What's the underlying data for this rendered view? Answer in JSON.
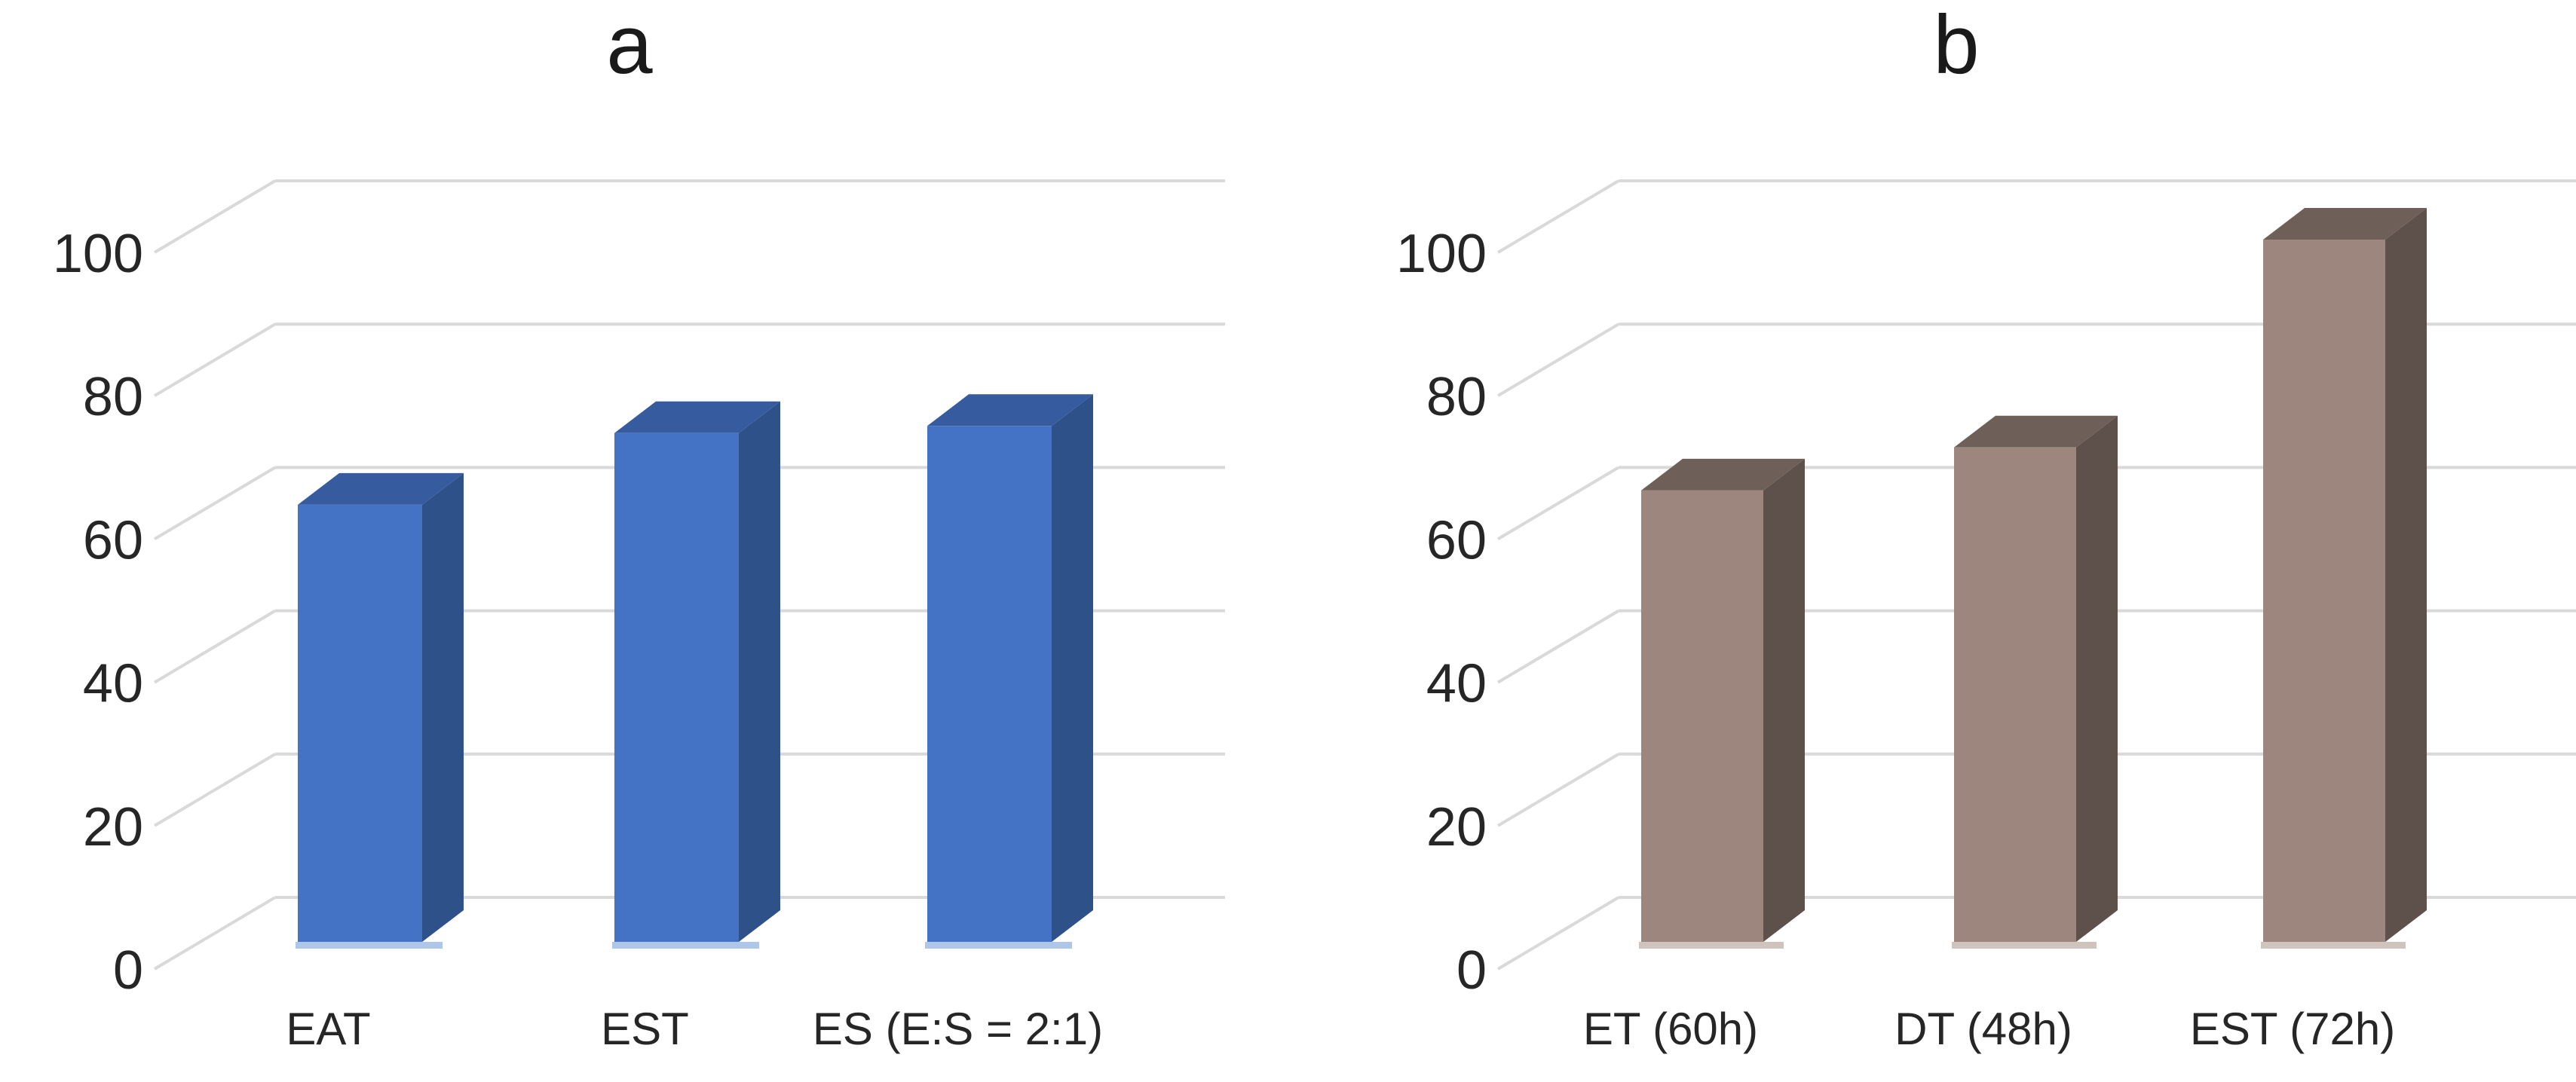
{
  "page": {
    "background": "#FFFFFF"
  },
  "axis_style": {
    "gridline_color": "#D9D9D9",
    "tick_color": "#262626",
    "category_color": "#262626",
    "title_color": "#1A1A1A"
  },
  "chart_data": [
    {
      "type": "bar",
      "variant": "3d-column",
      "title": "a",
      "categories": [
        "EAT",
        "EST",
        "ES (E:S = 2:1)"
      ],
      "values": [
        61,
        71,
        72
      ],
      "xlabel": "",
      "ylabel": "",
      "ylim": [
        0,
        100
      ],
      "yticks": [
        0,
        20,
        40,
        60,
        80,
        100
      ],
      "grid": true,
      "legend": "none",
      "colors": {
        "bar_front": "#4472C4",
        "bar_top": "#375B9F",
        "bar_side": "#2F5189",
        "bar_base_strip": "#AEC6E8"
      }
    },
    {
      "type": "bar",
      "variant": "3d-column",
      "title": "b",
      "categories": [
        "ET (60h)",
        "DT (48h)",
        "EST (72h)"
      ],
      "values": [
        63,
        69,
        98
      ],
      "xlabel": "",
      "ylabel": "",
      "ylim": [
        0,
        100
      ],
      "yticks": [
        0,
        20,
        40,
        60,
        80,
        100
      ],
      "grid": true,
      "legend": "none",
      "colors": {
        "bar_front": "#9C867E",
        "bar_top": "#6E6058",
        "bar_side": "#5E504B",
        "bar_base_strip": "#CFC3BD"
      }
    }
  ]
}
